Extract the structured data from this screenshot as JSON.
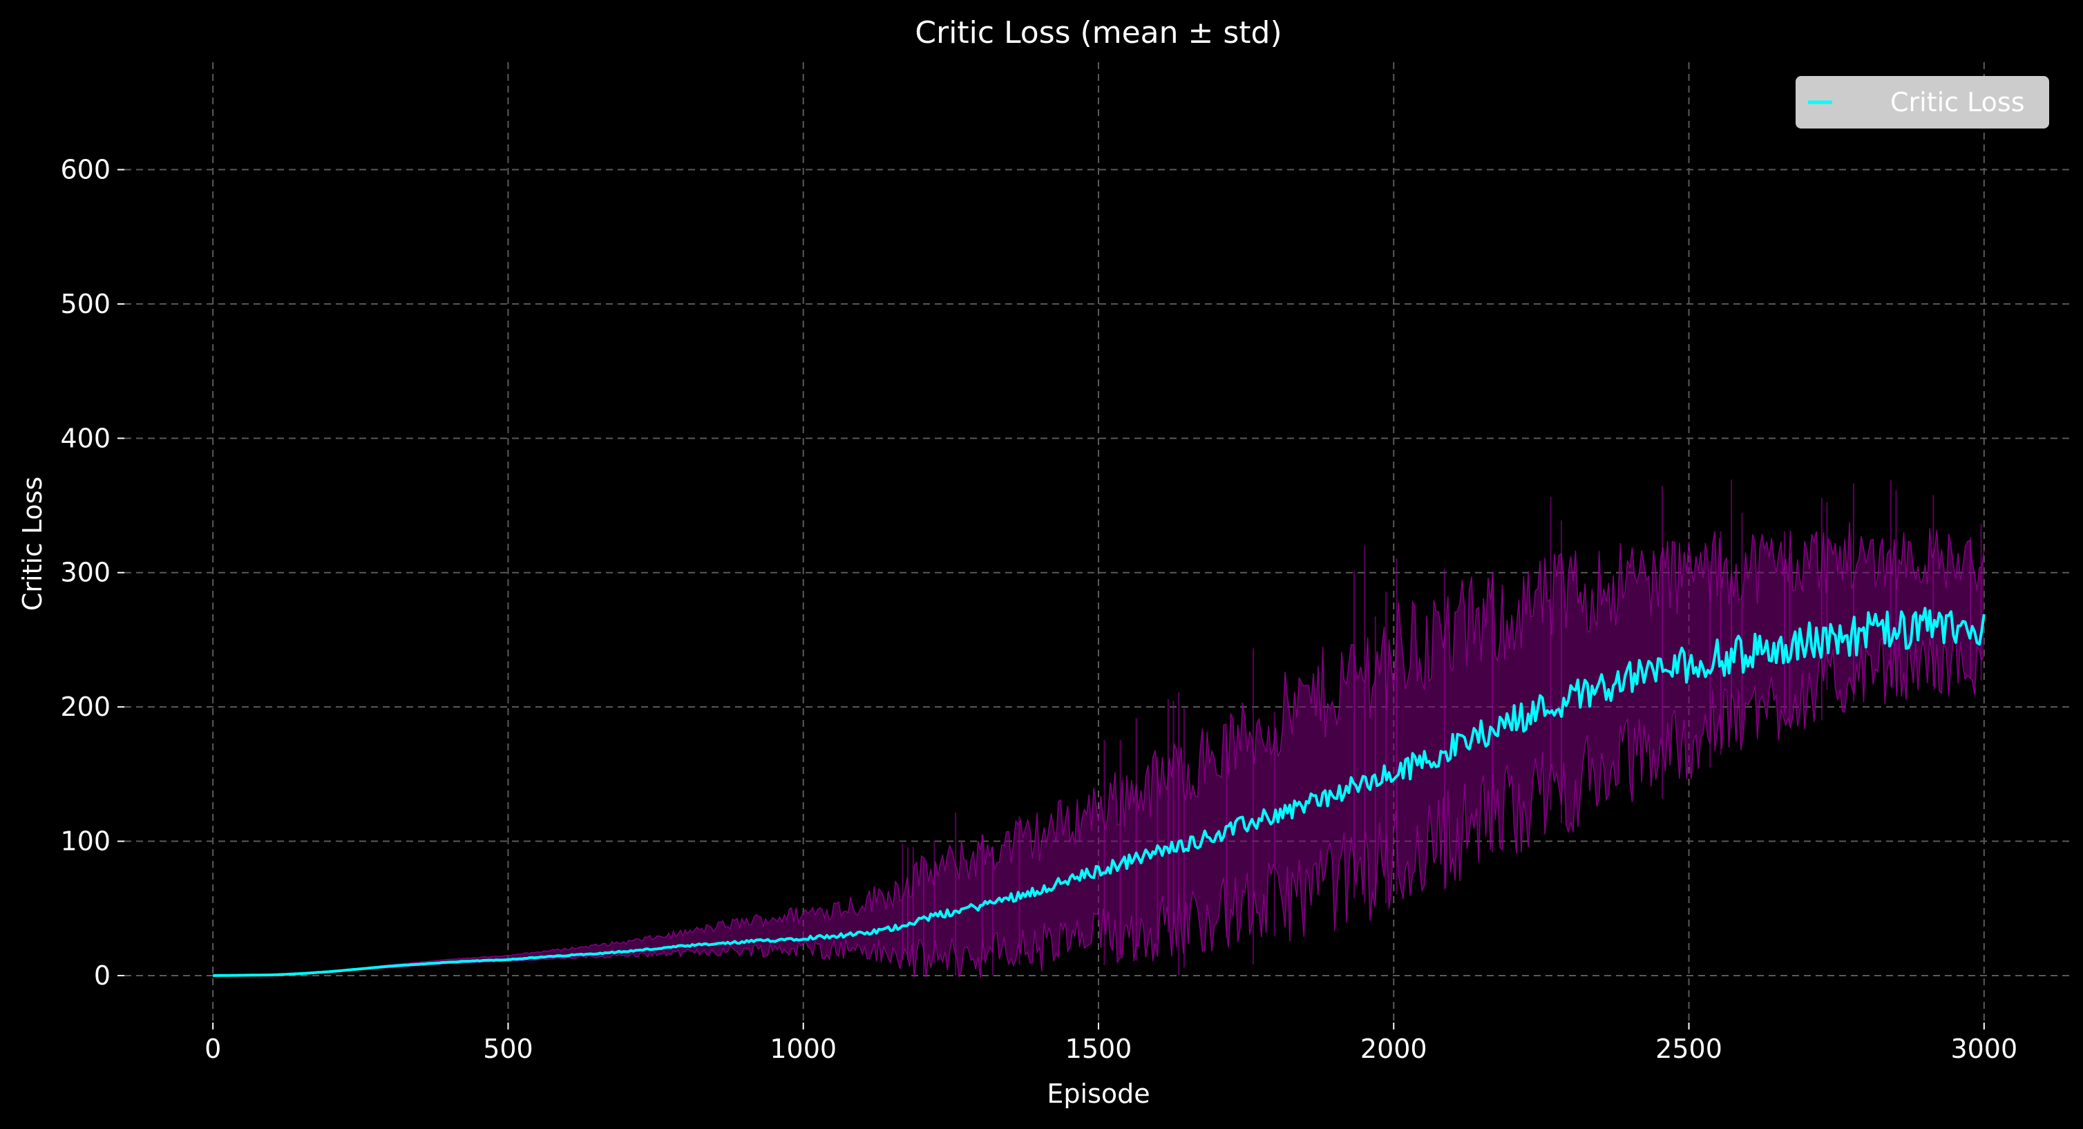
{
  "chart_data": {
    "type": "line",
    "title": "Critic Loss (mean ± std)",
    "xlabel": "Episode",
    "ylabel": "Critic Loss",
    "xlim": [
      -150,
      3150
    ],
    "ylim": [
      -35,
      680
    ],
    "xticks": [
      0,
      500,
      1000,
      1500,
      2000,
      2500,
      3000
    ],
    "yticks": [
      0,
      100,
      200,
      300,
      400,
      500,
      600
    ],
    "grid": true,
    "legend_position": "top-right",
    "colors": {
      "background": "#000000",
      "mean": "#00ffff",
      "band": "#800080",
      "band_spikes": "#9a009a"
    },
    "series": [
      {
        "name": "Critic Loss",
        "x": [
          0,
          100,
          150,
          200,
          300,
          400,
          500,
          600,
          700,
          800,
          900,
          1000,
          1100,
          1150,
          1200,
          1300,
          1400,
          1500,
          1600,
          1700,
          1800,
          1900,
          2000,
          2100,
          2200,
          2300,
          2350,
          2400,
          2500,
          2600,
          2700,
          2800,
          2900,
          3000
        ],
        "mean": [
          0,
          0.5,
          1.5,
          3,
          7,
          10,
          12,
          15,
          18,
          22,
          25,
          28,
          31,
          35,
          42,
          52,
          64,
          78,
          92,
          105,
          120,
          135,
          150,
          170,
          190,
          207,
          215,
          222,
          232,
          240,
          248,
          255,
          258,
          260
        ],
        "upper": [
          0,
          0.5,
          1.5,
          3,
          8,
          12,
          15,
          20,
          25,
          32,
          40,
          46,
          54,
          62,
          75,
          90,
          105,
          125,
          145,
          165,
          190,
          215,
          240,
          255,
          270,
          285,
          290,
          295,
          300,
          305,
          310,
          312,
          312,
          305
        ],
        "lower": [
          0,
          0.5,
          1.5,
          3,
          6,
          9,
          11,
          13,
          15,
          17,
          19,
          20,
          20,
          14,
          12,
          15,
          20,
          28,
          36,
          45,
          55,
          68,
          85,
          105,
          125,
          140,
          150,
          160,
          175,
          195,
          210,
          225,
          232,
          228
        ]
      }
    ]
  },
  "legend": {
    "label": "Critic Loss"
  }
}
